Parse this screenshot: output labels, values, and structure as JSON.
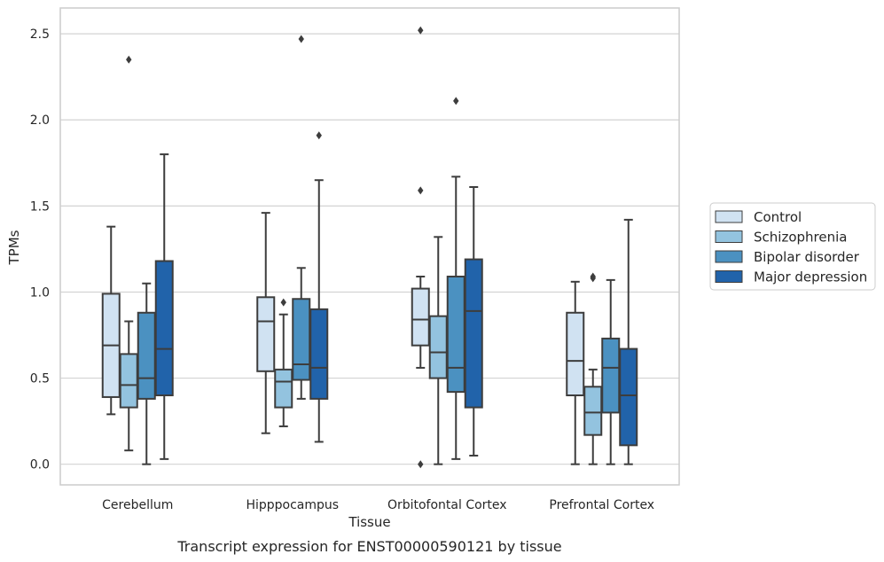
{
  "chart_data": {
    "type": "box",
    "title": "",
    "caption": "Transcript expression for ENST00000590121 by tissue",
    "xlabel": "Tissue",
    "ylabel": "TPMs",
    "ylim": [
      -0.12,
      2.65
    ],
    "yticks": [
      "0.0",
      "0.5",
      "1.0",
      "1.5",
      "2.0",
      "2.5"
    ],
    "grid": "horizontal",
    "legend_position": "right",
    "categories": [
      "Cerebellum",
      "Hipppocampus",
      "Orbitofontal Cortex",
      "Prefrontal Cortex"
    ],
    "series": [
      {
        "name": "Control",
        "color": "#d0e2f2",
        "boxes": [
          {
            "whislo": 0.29,
            "q1": 0.39,
            "med": 0.69,
            "q3": 0.99,
            "whishi": 1.38,
            "fliers": []
          },
          {
            "whislo": 0.18,
            "q1": 0.54,
            "med": 0.83,
            "q3": 0.97,
            "whishi": 1.46,
            "fliers": []
          },
          {
            "whislo": 0.56,
            "q1": 0.69,
            "med": 0.84,
            "q3": 1.02,
            "whishi": 1.09,
            "fliers": [
              1.59,
              2.52,
              0.0
            ]
          },
          {
            "whislo": 0.0,
            "q1": 0.4,
            "med": 0.6,
            "q3": 0.88,
            "whishi": 1.06,
            "fliers": []
          }
        ]
      },
      {
        "name": "Schizophrenia",
        "color": "#93c3df",
        "boxes": [
          {
            "whislo": 0.08,
            "q1": 0.33,
            "med": 0.46,
            "q3": 0.64,
            "whishi": 0.83,
            "fliers": [
              2.35
            ]
          },
          {
            "whislo": 0.22,
            "q1": 0.33,
            "med": 0.48,
            "q3": 0.55,
            "whishi": 0.87,
            "fliers": [
              0.94
            ]
          },
          {
            "whislo": 0.0,
            "q1": 0.5,
            "med": 0.65,
            "q3": 0.86,
            "whishi": 1.32,
            "fliers": []
          },
          {
            "whislo": 0.0,
            "q1": 0.17,
            "med": 0.3,
            "q3": 0.45,
            "whishi": 0.55,
            "fliers": [
              1.08,
              1.09
            ]
          }
        ]
      },
      {
        "name": "Bipolar disorder",
        "color": "#4b91c1",
        "boxes": [
          {
            "whislo": 0.0,
            "q1": 0.38,
            "med": 0.5,
            "q3": 0.88,
            "whishi": 1.05,
            "fliers": []
          },
          {
            "whislo": 0.38,
            "q1": 0.49,
            "med": 0.58,
            "q3": 0.96,
            "whishi": 1.14,
            "fliers": [
              2.47
            ]
          },
          {
            "whislo": 0.03,
            "q1": 0.42,
            "med": 0.56,
            "q3": 1.09,
            "whishi": 1.67,
            "fliers": [
              2.11
            ]
          },
          {
            "whislo": 0.0,
            "q1": 0.3,
            "med": 0.56,
            "q3": 0.73,
            "whishi": 1.07,
            "fliers": []
          }
        ]
      },
      {
        "name": "Major depression",
        "color": "#2163aa",
        "boxes": [
          {
            "whislo": 0.03,
            "q1": 0.4,
            "med": 0.67,
            "q3": 1.18,
            "whishi": 1.8,
            "fliers": []
          },
          {
            "whislo": 0.13,
            "q1": 0.38,
            "med": 0.56,
            "q3": 0.9,
            "whishi": 1.65,
            "fliers": [
              1.91
            ]
          },
          {
            "whislo": 0.05,
            "q1": 0.33,
            "med": 0.89,
            "q3": 1.19,
            "whishi": 1.61,
            "fliers": []
          },
          {
            "whislo": 0.0,
            "q1": 0.11,
            "med": 0.4,
            "q3": 0.67,
            "whishi": 1.42,
            "fliers": []
          }
        ]
      }
    ]
  }
}
